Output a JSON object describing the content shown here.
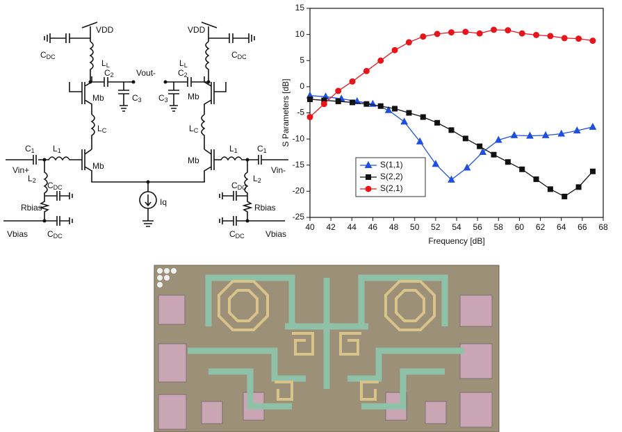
{
  "schematic": {
    "labels": [
      {
        "main": "VDD"
      },
      {
        "main": "VDD"
      },
      {
        "main": "C",
        "sub": "DC"
      },
      {
        "main": "C",
        "sub": "DC"
      },
      {
        "main": "L",
        "sub": "L"
      },
      {
        "main": "L",
        "sub": "L"
      },
      {
        "main": "C",
        "sub": "2"
      },
      {
        "main": "C",
        "sub": "2"
      },
      {
        "main": "Vout-"
      },
      {
        "main": "C",
        "sub": "3"
      },
      {
        "main": "C",
        "sub": "3"
      },
      {
        "main": "Mb"
      },
      {
        "main": "Mb"
      },
      {
        "main": "L",
        "sub": "C"
      },
      {
        "main": "L",
        "sub": "C"
      },
      {
        "main": "Mb"
      },
      {
        "main": "Mb"
      },
      {
        "main": "C",
        "sub": "1"
      },
      {
        "main": "L",
        "sub": "1"
      },
      {
        "main": "L",
        "sub": "1"
      },
      {
        "main": "C",
        "sub": "1"
      },
      {
        "main": "Vin+"
      },
      {
        "main": "Vin-"
      },
      {
        "main": "L",
        "sub": "2"
      },
      {
        "main": "C",
        "sub": "DC"
      },
      {
        "main": "L",
        "sub": "2"
      },
      {
        "main": "C",
        "sub": "DC"
      },
      {
        "main": "Rbias"
      },
      {
        "main": "Rbias"
      },
      {
        "main": "Vbias"
      },
      {
        "main": "C",
        "sub": "DC"
      },
      {
        "main": "C",
        "sub": "DC"
      },
      {
        "main": "Vbias"
      },
      {
        "main": "Iq"
      }
    ]
  },
  "chart_data": {
    "type": "line",
    "x_label": "Frequency [dB]",
    "y_label": "S Parameters [dB]",
    "xlim": [
      40,
      68
    ],
    "xticks": [
      40,
      42,
      44,
      46,
      48,
      50,
      52,
      54,
      56,
      58,
      60,
      62,
      64,
      66,
      68
    ],
    "ylim": [
      -25,
      15
    ],
    "yticks": [
      -25,
      -20,
      -15,
      -10,
      -5,
      0,
      5,
      10,
      15
    ],
    "legend": "lower-left",
    "series": [
      {
        "name": "S(1,1)",
        "color": "#1f4fe0",
        "marker": "triangle",
        "x": [
          40,
          41.5,
          43,
          44.5,
          46,
          47.5,
          49,
          50.5,
          52,
          53.5,
          55,
          56.5,
          58,
          59.5,
          61,
          62.5,
          64,
          65.5,
          67
        ],
        "values": [
          -1.7,
          -1.9,
          -2.3,
          -2.8,
          -3.3,
          -4.5,
          -6.7,
          -10.5,
          -14.8,
          -17.8,
          -15.5,
          -12.5,
          -10.2,
          -9.3,
          -9.4,
          -9.3,
          -9,
          -8.4,
          -7.7
        ]
      },
      {
        "name": "S(2,2)",
        "color": "#111111",
        "marker": "square",
        "x": [
          40,
          41.35,
          42.7,
          44.05,
          45.4,
          46.75,
          48.1,
          49.45,
          50.8,
          52.15,
          53.5,
          54.85,
          56.2,
          57.55,
          58.9,
          60.25,
          61.6,
          62.95,
          64.3,
          65.65,
          67
        ],
        "values": [
          -2.4,
          -2.6,
          -2.8,
          -3,
          -3.3,
          -3.7,
          -4.2,
          -5,
          -5.8,
          -6.9,
          -8.3,
          -9.9,
          -11.4,
          -13,
          -14.4,
          -15.8,
          -17.7,
          -19.6,
          -21,
          -19.2,
          -16.2
        ]
      },
      {
        "name": "S(2,1)",
        "color": "#e8141b",
        "marker": "circle",
        "x": [
          40,
          41.35,
          42.7,
          44.05,
          45.4,
          46.75,
          48.1,
          49.45,
          50.8,
          52.15,
          53.5,
          54.85,
          56.2,
          57.55,
          58.9,
          60.25,
          61.6,
          62.95,
          64.3,
          65.65,
          67
        ],
        "values": [
          -5.8,
          -3.3,
          -0.8,
          1,
          3,
          5,
          7,
          8.5,
          9.6,
          10.1,
          10.4,
          10.5,
          10.2,
          10.9,
          10.8,
          10.2,
          9.9,
          9.7,
          9.3,
          9.2,
          8.8
        ]
      }
    ]
  }
}
